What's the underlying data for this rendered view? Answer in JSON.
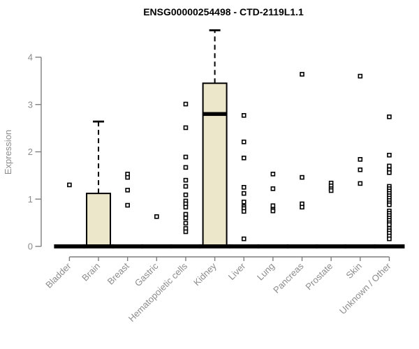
{
  "chart_data": {
    "type": "box",
    "title": "ENSG00000254498 - CTD-2119L1.1",
    "xlabel": "",
    "ylabel": "Expression",
    "ylim": [
      0,
      4.6
    ],
    "yticks": [
      0,
      1,
      2,
      3,
      4
    ],
    "grid": false,
    "legend": "none",
    "categories": [
      "Bladder",
      "Brain",
      "Breast",
      "Gastric",
      "Hematopoietic cells",
      "Kidney",
      "Liver",
      "Lung",
      "Pancreas",
      "Prostate",
      "Skin",
      "Unknown / Other"
    ],
    "series": [
      {
        "name": "Bladder",
        "whisker_low": 0,
        "q1": 0,
        "median": 0,
        "q3": 0,
        "whisker_high": 0,
        "outliers": [
          1.3
        ]
      },
      {
        "name": "Brain",
        "whisker_low": 0,
        "q1": 0,
        "median": 0,
        "q3": 1.12,
        "whisker_high": 2.64,
        "outliers": []
      },
      {
        "name": "Breast",
        "whisker_low": 0,
        "q1": 0,
        "median": 0,
        "q3": 0,
        "whisker_high": 0,
        "outliers": [
          1.53,
          1.46,
          1.19,
          0.87
        ]
      },
      {
        "name": "Gastric",
        "whisker_low": 0,
        "q1": 0,
        "median": 0,
        "q3": 0,
        "whisker_high": 0,
        "outliers": [
          0.63
        ]
      },
      {
        "name": "Hematopoietic cells",
        "whisker_low": 0,
        "q1": 0,
        "median": 0,
        "q3": 0,
        "whisker_high": 0,
        "outliers": [
          3.01,
          2.51,
          1.89,
          1.67,
          1.4,
          1.27,
          1.09,
          0.96,
          0.9,
          0.83,
          0.68,
          0.6,
          0.49,
          0.38,
          0.31
        ]
      },
      {
        "name": "Kidney",
        "whisker_low": 0,
        "q1": 0,
        "median": 2.8,
        "q3": 3.45,
        "whisker_high": 4.57,
        "outliers": []
      },
      {
        "name": "Liver",
        "whisker_low": 0,
        "q1": 0,
        "median": 0,
        "q3": 0,
        "whisker_high": 0,
        "outliers": [
          2.77,
          2.21,
          1.87,
          1.25,
          1.12,
          0.94,
          0.84,
          0.8,
          0.74,
          0.16
        ]
      },
      {
        "name": "Lung",
        "whisker_low": 0,
        "q1": 0,
        "median": 0,
        "q3": 0,
        "whisker_high": 0,
        "outliers": [
          1.53,
          1.22,
          0.86,
          0.78,
          0.75
        ]
      },
      {
        "name": "Pancreas",
        "whisker_low": 0,
        "q1": 0,
        "median": 0,
        "q3": 0,
        "whisker_high": 0,
        "outliers": [
          3.64,
          1.46,
          0.9,
          0.83
        ]
      },
      {
        "name": "Prostate",
        "whisker_low": 0,
        "q1": 0,
        "median": 0,
        "q3": 0,
        "whisker_high": 0,
        "outliers": [
          1.34,
          1.28,
          1.22,
          1.18
        ]
      },
      {
        "name": "Skin",
        "whisker_low": 0,
        "q1": 0,
        "median": 0,
        "q3": 0,
        "whisker_high": 0,
        "outliers": [
          3.6,
          1.84,
          1.62,
          1.33
        ]
      },
      {
        "name": "Unknown / Other",
        "whisker_low": 0,
        "q1": 0,
        "median": 0,
        "q3": 0,
        "whisker_high": 0,
        "outliers": [
          2.74,
          1.93,
          1.7,
          1.62,
          1.56,
          1.27,
          1.22,
          1.17,
          1.12,
          1.07,
          1.02,
          0.97,
          0.92,
          0.88,
          0.75,
          0.7,
          0.65,
          0.6,
          0.55,
          0.5,
          0.46,
          0.38,
          0.33,
          0.28,
          0.22,
          0.16
        ]
      }
    ],
    "colors": {
      "box_fill": "#ECE7CA",
      "box_stroke": "#000000",
      "median_color": "#000000",
      "outlier_stroke": "#000000",
      "outlier_fill": "#ffffff",
      "axis_color": "#7f7f7f",
      "tick_text_color": "#8c8c8c",
      "title_color": "#000000",
      "background": "#ffffff"
    }
  }
}
